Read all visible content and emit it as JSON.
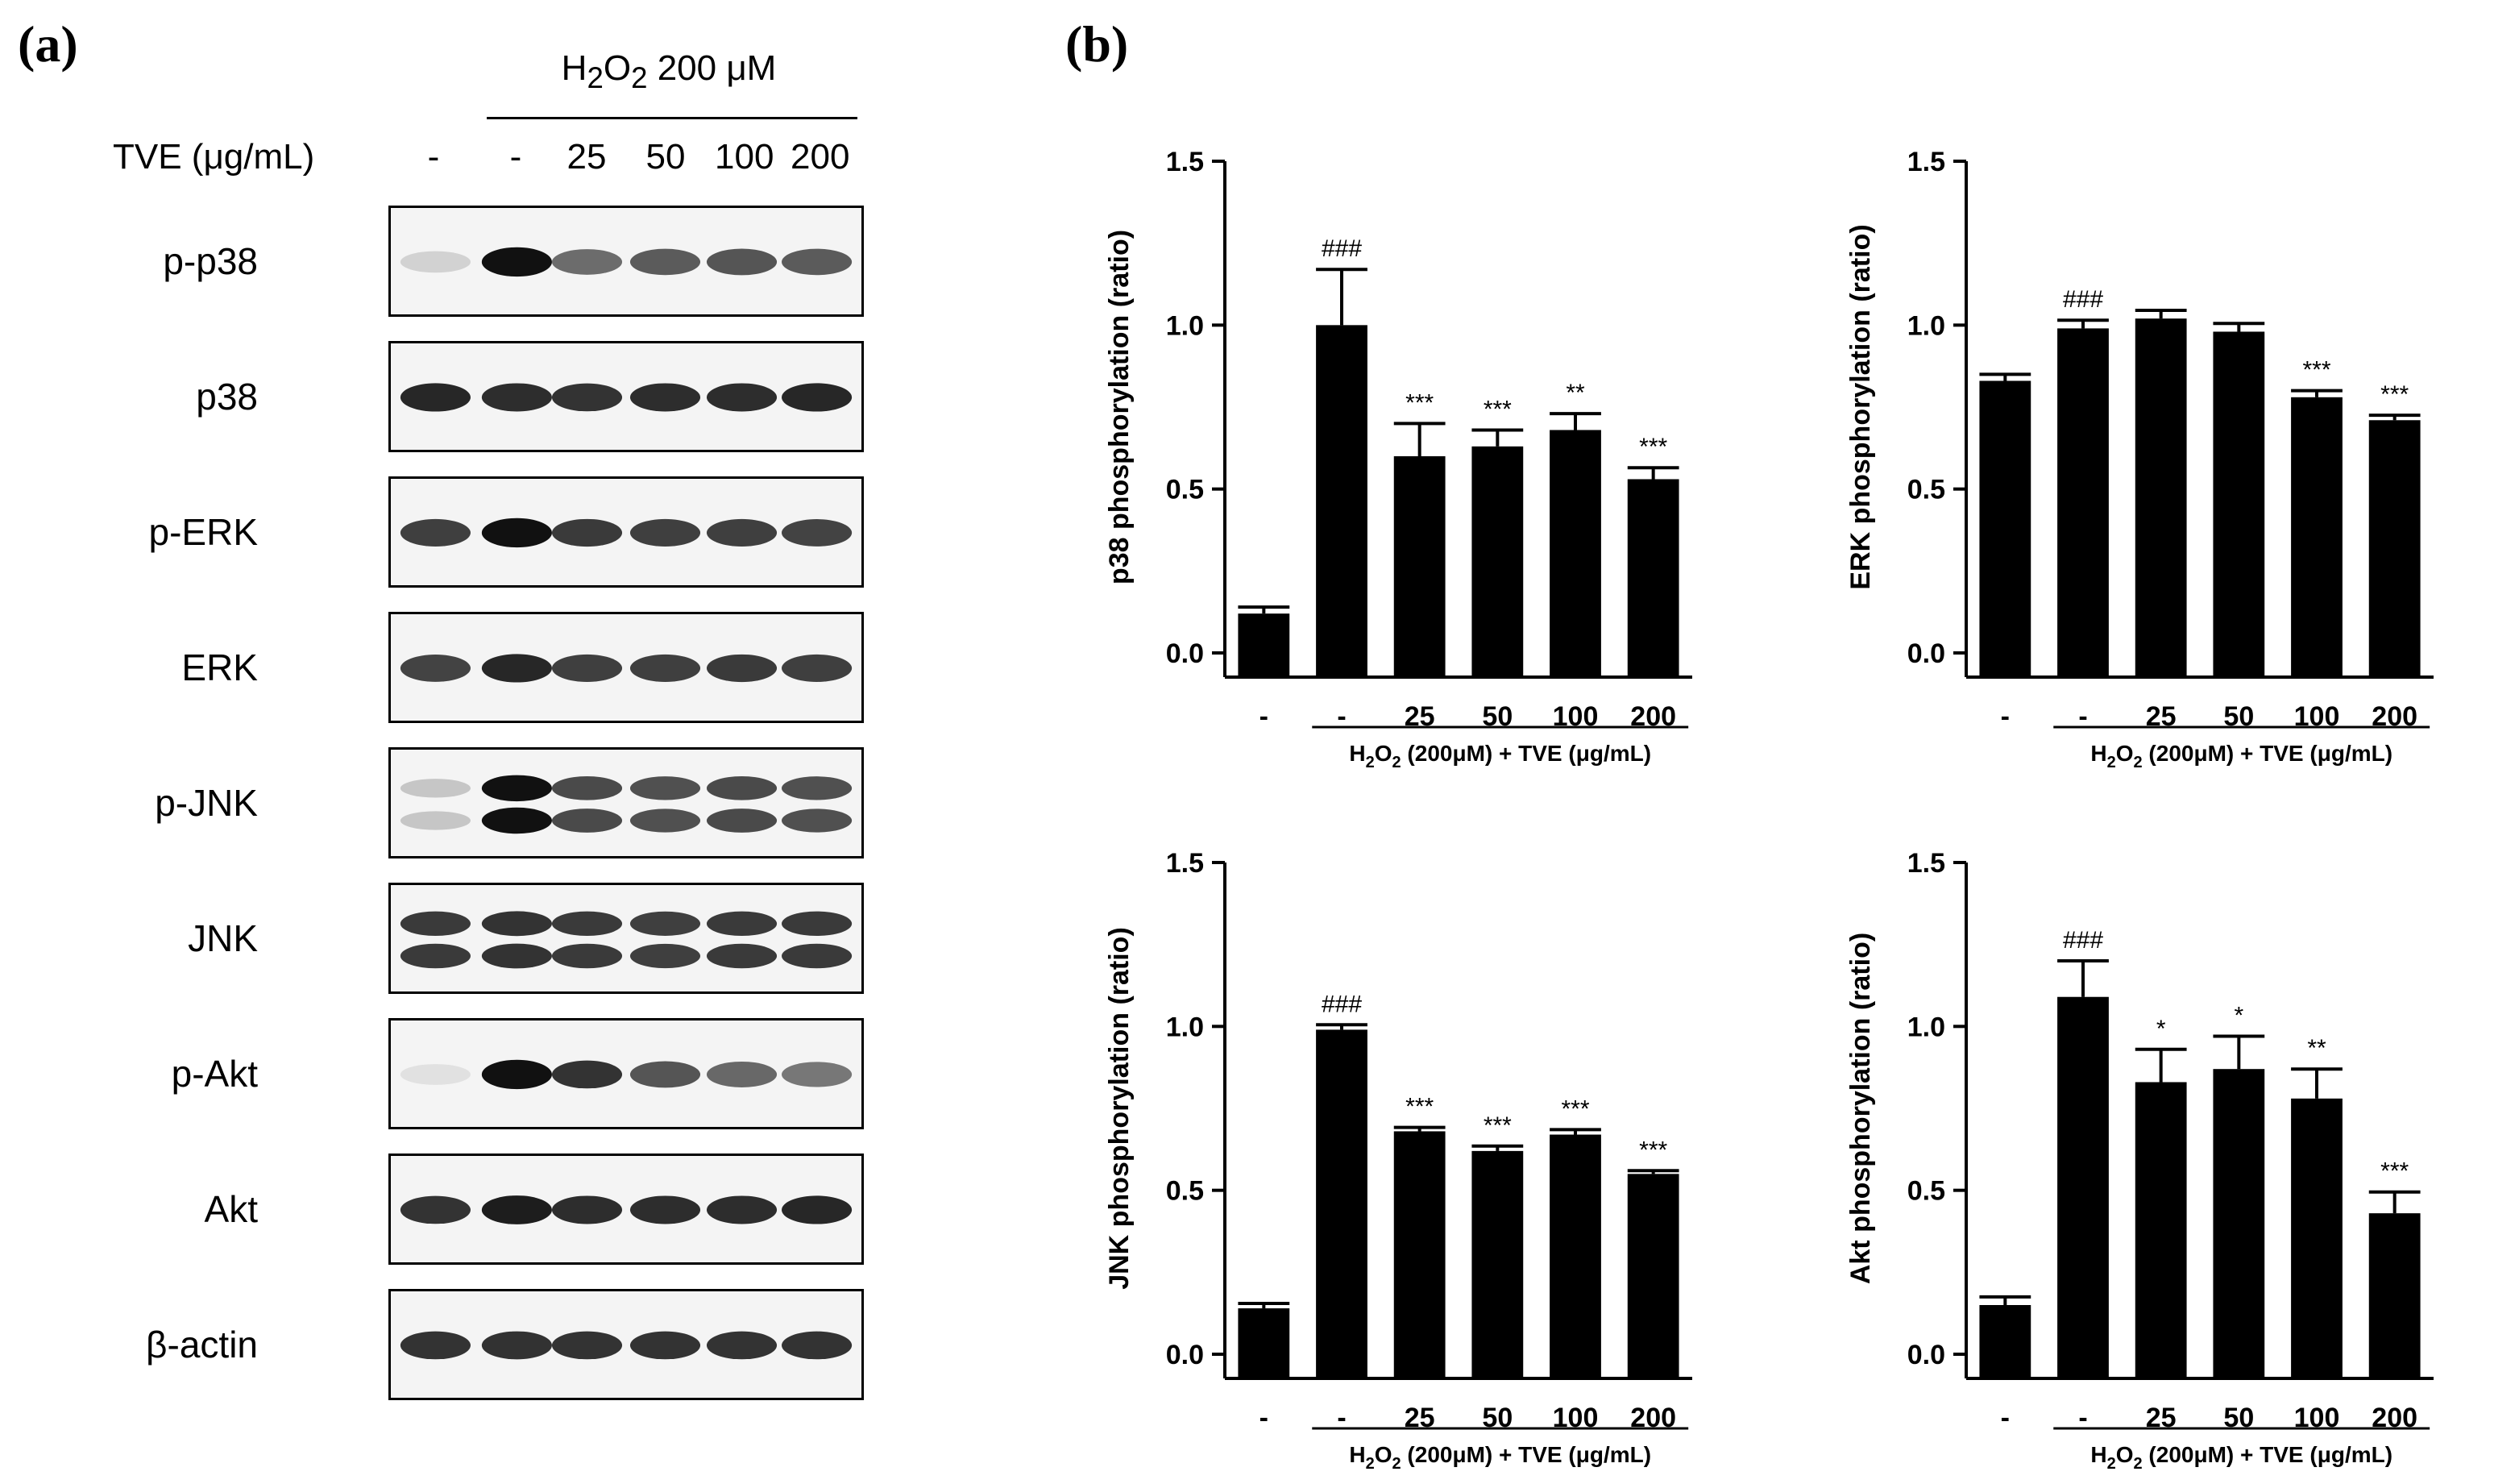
{
  "panels": {
    "a": "(a)",
    "b": "(b)"
  },
  "blot": {
    "treatment_header": "200 μM",
    "tve_label": "TVE (μg/mL)",
    "lanes": [
      "-",
      "-",
      "25",
      "50",
      "100",
      "200"
    ],
    "rows": [
      {
        "label": "p-p38",
        "band_levels": [
          0.15,
          1.0,
          0.6,
          0.68,
          0.7,
          0.68
        ],
        "double": false
      },
      {
        "label": "p38",
        "band_levels": [
          0.9,
          0.88,
          0.85,
          0.88,
          0.88,
          0.9
        ],
        "double": false
      },
      {
        "label": "p-ERK",
        "band_levels": [
          0.8,
          1.0,
          0.82,
          0.8,
          0.8,
          0.78
        ],
        "double": false
      },
      {
        "label": "ERK",
        "band_levels": [
          0.78,
          0.9,
          0.8,
          0.8,
          0.82,
          0.8
        ],
        "double": false
      },
      {
        "label": "p-JNK",
        "band_levels": [
          0.2,
          1.0,
          0.75,
          0.72,
          0.75,
          0.72
        ],
        "double": true
      },
      {
        "label": "JNK",
        "band_levels": [
          0.82,
          0.85,
          0.82,
          0.8,
          0.82,
          0.82
        ],
        "double": true
      },
      {
        "label": "p-Akt",
        "band_levels": [
          0.08,
          1.0,
          0.85,
          0.7,
          0.62,
          0.55
        ],
        "double": false
      },
      {
        "label": "Akt",
        "band_levels": [
          0.85,
          0.95,
          0.88,
          0.88,
          0.88,
          0.9
        ],
        "double": false
      },
      {
        "label": "β-actin",
        "band_levels": [
          0.85,
          0.86,
          0.85,
          0.85,
          0.85,
          0.85
        ],
        "double": false
      }
    ]
  },
  "colors": {
    "bar": "#000000",
    "band": "#111111",
    "blot_bg": "#f4f4f4"
  },
  "chart_data": [
    {
      "type": "bar",
      "ylabel": "p38 phosphorylation (ratio)",
      "categories": [
        "-",
        "-",
        "25",
        "50",
        "100",
        "200"
      ],
      "values": [
        0.12,
        1.0,
        0.6,
        0.63,
        0.68,
        0.53
      ],
      "errors": [
        0.02,
        0.17,
        0.1,
        0.05,
        0.05,
        0.035
      ],
      "annotations": [
        "",
        "###",
        "***",
        "***",
        "**",
        "***"
      ],
      "ylim": [
        0,
        1.5
      ],
      "yticks": [
        "0.0",
        "0.5",
        "1.0",
        "1.5"
      ],
      "group_label_suffix": " (200μM) + TVE (μg/mL)"
    },
    {
      "type": "bar",
      "ylabel": "ERK phosphorylation (ratio)",
      "categories": [
        "-",
        "-",
        "25",
        "50",
        "100",
        "200"
      ],
      "values": [
        0.83,
        0.99,
        1.02,
        0.98,
        0.78,
        0.71
      ],
      "errors": [
        0.02,
        0.025,
        0.025,
        0.025,
        0.02,
        0.015
      ],
      "annotations": [
        "",
        "###",
        "",
        "",
        "***",
        "***"
      ],
      "ylim": [
        0,
        1.5
      ],
      "yticks": [
        "0.0",
        "0.5",
        "1.0",
        "1.5"
      ],
      "group_label_suffix": " (200μM) + TVE (μg/mL)"
    },
    {
      "type": "bar",
      "ylabel": "JNK phosphorylation (ratio)",
      "categories": [
        "-",
        "-",
        "25",
        "50",
        "100",
        "200"
      ],
      "values": [
        0.14,
        0.99,
        0.68,
        0.62,
        0.67,
        0.55
      ],
      "errors": [
        0.015,
        0.015,
        0.012,
        0.015,
        0.015,
        0.01
      ],
      "annotations": [
        "",
        "###",
        "***",
        "***",
        "***",
        "***"
      ],
      "ylim": [
        0,
        1.5
      ],
      "yticks": [
        "0.0",
        "0.5",
        "1.0",
        "1.5"
      ],
      "group_label_suffix": " (200μM) + TVE (μg/mL)"
    },
    {
      "type": "bar",
      "ylabel": "Akt phosphorylation (ratio)",
      "categories": [
        "-",
        "-",
        "25",
        "50",
        "100",
        "200"
      ],
      "values": [
        0.15,
        1.09,
        0.83,
        0.87,
        0.78,
        0.43
      ],
      "errors": [
        0.025,
        0.11,
        0.1,
        0.1,
        0.09,
        0.065
      ],
      "annotations": [
        "",
        "###",
        "*",
        "*",
        "**",
        "***"
      ],
      "ylim": [
        0,
        1.5
      ],
      "yticks": [
        "0.0",
        "0.5",
        "1.0",
        "1.5"
      ],
      "group_label_suffix": " (200μM) + TVE (μg/mL)"
    }
  ]
}
